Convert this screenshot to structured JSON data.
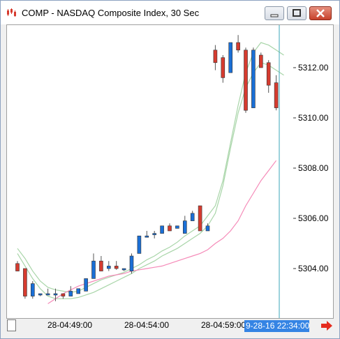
{
  "window": {
    "title": "COMP - NASDAQ Composite Index, 30 Sec"
  },
  "icons": {
    "app": "chart-app-icon",
    "minimize": "minimize-icon",
    "maximize": "maximize-icon",
    "close": "close-icon",
    "navigate": "arrow-right-icon"
  },
  "colors": {
    "up_candle": "#1a6fd6",
    "down_candle": "#d63b2f",
    "pink_ma": "#f58ab8",
    "green_ma": "#a8d5a8",
    "cursor_line": "#3aa6b9",
    "time_badge": "#3584e4"
  },
  "axis": {
    "x_labels": [
      "28-04:49:00",
      "28-04:54:00",
      "28-04:59:00"
    ],
    "y_labels": [
      "5312.00",
      "5310.00",
      "5308.00",
      "5306.00",
      "5304.00"
    ],
    "cursor_time": "9-28-16 22:34:00"
  },
  "chart_data": {
    "type": "candlestick",
    "ylim": [
      5302.5,
      5313.8
    ],
    "y_ticks": [
      5304,
      5306,
      5308,
      5310,
      5312
    ],
    "bar_interval": "30 Sec",
    "candles": [
      {
        "o": 5304.2,
        "h": 5304.3,
        "l": 5303.9,
        "c": 5303.9
      },
      {
        "o": 5304.0,
        "h": 5304.0,
        "l": 5302.8,
        "c": 5302.9
      },
      {
        "o": 5302.9,
        "h": 5303.5,
        "l": 5302.8,
        "c": 5303.4
      },
      {
        "o": 5303.0,
        "h": 5303.0,
        "l": 5302.9,
        "c": 5303.0
      },
      {
        "o": 5303.0,
        "h": 5303.2,
        "l": 5302.95,
        "c": 5303.0
      },
      {
        "o": 5303.0,
        "h": 5303.2,
        "l": 5302.7,
        "c": 5303.0
      },
      {
        "o": 5303.0,
        "h": 5303.0,
        "l": 5302.8,
        "c": 5302.9
      },
      {
        "o": 5302.9,
        "h": 5303.3,
        "l": 5302.9,
        "c": 5303.1
      },
      {
        "o": 5303.0,
        "h": 5303.2,
        "l": 5303.0,
        "c": 5303.2
      },
      {
        "o": 5303.1,
        "h": 5303.6,
        "l": 5303.1,
        "c": 5303.6
      },
      {
        "o": 5303.6,
        "h": 5304.6,
        "l": 5303.6,
        "c": 5304.3
      },
      {
        "o": 5304.3,
        "h": 5304.5,
        "l": 5303.9,
        "c": 5303.9
      },
      {
        "o": 5304.0,
        "h": 5304.3,
        "l": 5303.9,
        "c": 5304.1
      },
      {
        "o": 5304.1,
        "h": 5304.3,
        "l": 5303.95,
        "c": 5304.0
      },
      {
        "o": 5304.0,
        "h": 5304.0,
        "l": 5303.9,
        "c": 5304.0
      },
      {
        "o": 5303.9,
        "h": 5304.6,
        "l": 5303.8,
        "c": 5304.5
      },
      {
        "o": 5304.6,
        "h": 5305.3,
        "l": 5304.6,
        "c": 5305.3
      },
      {
        "o": 5305.3,
        "h": 5305.5,
        "l": 5305.3,
        "c": 5305.3
      },
      {
        "o": 5305.4,
        "h": 5305.5,
        "l": 5305.2,
        "c": 5305.4
      },
      {
        "o": 5305.4,
        "h": 5305.7,
        "l": 5305.4,
        "c": 5305.7
      },
      {
        "o": 5305.7,
        "h": 5305.8,
        "l": 5305.5,
        "c": 5305.5
      },
      {
        "o": 5305.6,
        "h": 5305.7,
        "l": 5305.6,
        "c": 5305.7
      },
      {
        "o": 5305.4,
        "h": 5306.1,
        "l": 5305.4,
        "c": 5305.9
      },
      {
        "o": 5305.9,
        "h": 5306.3,
        "l": 5305.9,
        "c": 5306.2
      },
      {
        "o": 5306.5,
        "h": 5306.5,
        "l": 5305.5,
        "c": 5305.5
      },
      {
        "o": 5305.5,
        "h": 5305.8,
        "l": 5305.5,
        "c": 5305.7
      },
      {
        "o": 5312.7,
        "h": 5312.9,
        "l": 5311.9,
        "c": 5312.2
      },
      {
        "o": 5312.4,
        "h": 5312.5,
        "l": 5311.4,
        "c": 5311.6
      },
      {
        "o": 5311.8,
        "h": 5313.0,
        "l": 5311.8,
        "c": 5313.0
      },
      {
        "o": 5313.0,
        "h": 5313.3,
        "l": 5312.6,
        "c": 5312.7
      },
      {
        "o": 5312.7,
        "h": 5312.8,
        "l": 5310.2,
        "c": 5310.3
      },
      {
        "o": 5310.4,
        "h": 5312.8,
        "l": 5310.4,
        "c": 5312.7
      },
      {
        "o": 5312.5,
        "h": 5312.6,
        "l": 5312.0,
        "c": 5312.0
      },
      {
        "o": 5312.2,
        "h": 5312.3,
        "l": 5311.0,
        "c": 5311.3
      },
      {
        "o": 5311.4,
        "h": 5311.7,
        "l": 5310.3,
        "c": 5310.4
      }
    ],
    "pink_ma": [
      5302.6,
      5302.8,
      5303.0,
      5303.15,
      5303.3,
      5303.4,
      5303.5,
      5303.6,
      5303.7,
      5303.75,
      5303.8,
      5303.9,
      5303.95,
      5304.0,
      5304.05,
      5304.1,
      5304.2,
      5304.3,
      5304.4,
      5304.5,
      5304.6,
      5304.75,
      5305.0,
      5305.2,
      5305.5,
      5305.9,
      5306.5,
      5307.0,
      5307.5,
      5307.9,
      5308.3
    ],
    "green_ma_upper": [
      5304.8,
      5304.4,
      5303.9,
      5303.5,
      5303.25,
      5303.15,
      5303.1,
      5303.05,
      5303.1,
      5303.25,
      5303.4,
      5303.55,
      5303.65,
      5303.75,
      5303.85,
      5304.0,
      5304.15,
      5304.35,
      5304.5,
      5304.7,
      5304.85,
      5305.05,
      5305.3,
      5305.5,
      5305.7,
      5306.1,
      5306.5,
      5307.5,
      5309.0,
      5310.5,
      5311.8,
      5312.6,
      5313.0,
      5312.9,
      5312.7,
      5312.5
    ],
    "green_ma_lower": [
      5304.6,
      5304.1,
      5303.6,
      5303.2,
      5302.9,
      5302.8,
      5302.8,
      5302.8,
      5302.85,
      5302.95,
      5303.05,
      5303.2,
      5303.35,
      5303.5,
      5303.65,
      5303.8,
      5304.0,
      5304.15,
      5304.3,
      5304.5,
      5304.65,
      5304.8,
      5305.0,
      5305.2,
      5305.4,
      5305.7,
      5306.2,
      5307.3,
      5308.8,
      5310.2,
      5311.2,
      5311.8,
      5312.2,
      5312.1,
      5311.9,
      5311.7
    ]
  }
}
